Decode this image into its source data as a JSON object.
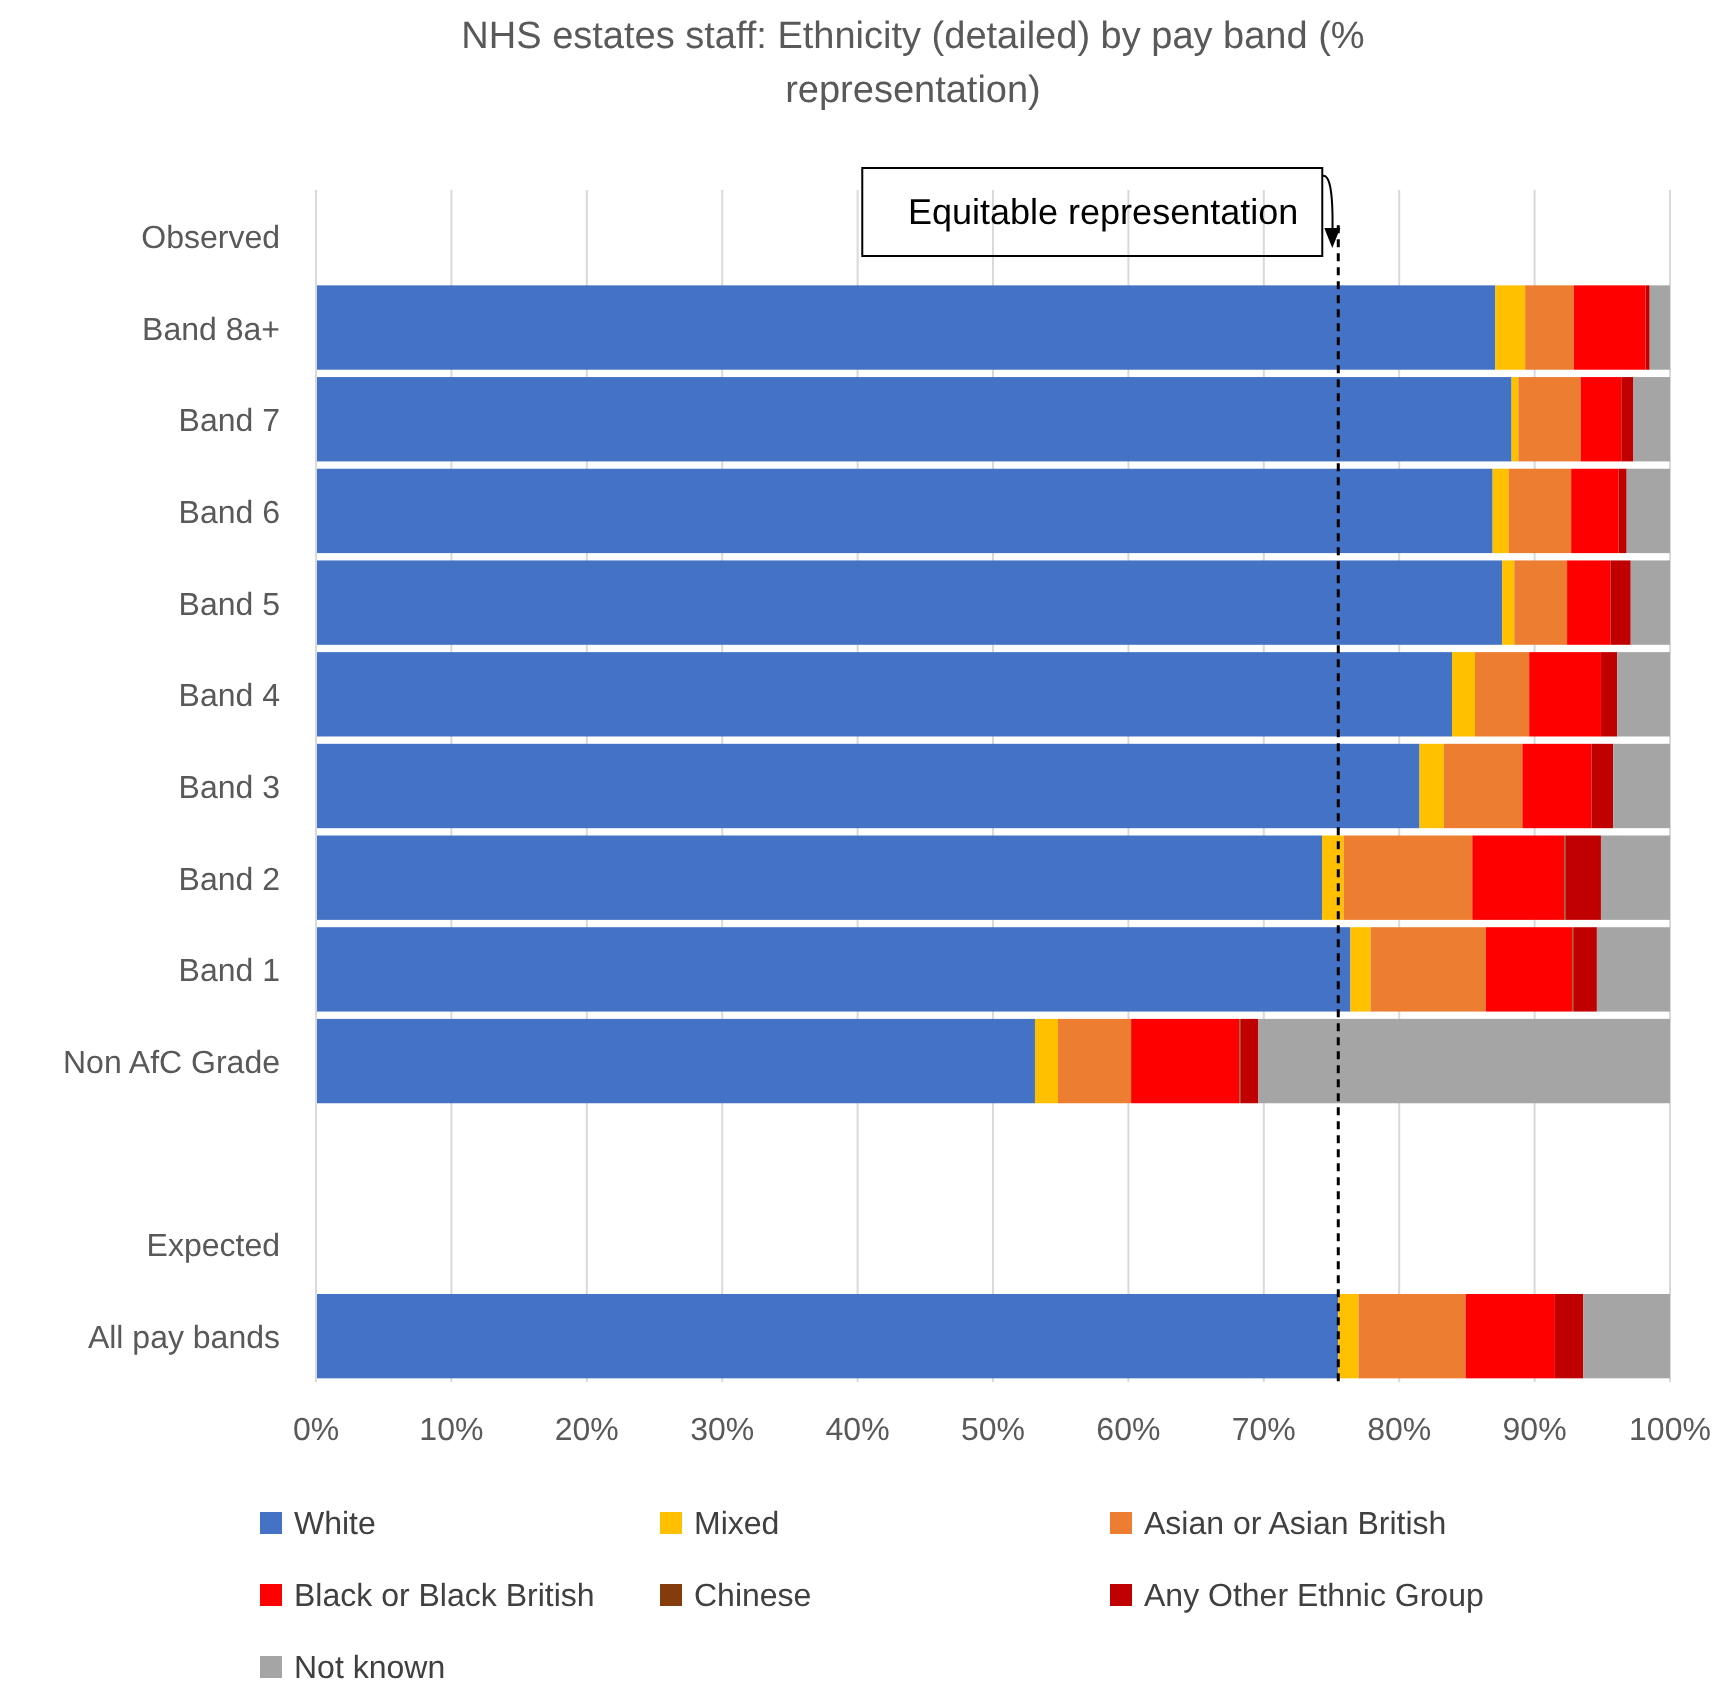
{
  "chart_data": {
    "type": "bar",
    "orientation": "horizontal",
    "stacked": true,
    "title": "NHS estates staff: Ethnicity (detailed) by pay band (% representation)",
    "categories": [
      "Observed",
      "Band 8a+",
      "Band 7",
      "Band 6",
      "Band 5",
      "Band 4",
      "Band 3",
      "Band 2",
      "Band 1",
      "Non AfC Grade",
      null,
      "Expected",
      "All pay bands"
    ],
    "series": [
      {
        "name": "White",
        "color": "#4472c4",
        "values": [
          null,
          87.1,
          88.3,
          86.9,
          87.6,
          83.9,
          81.5,
          74.3,
          76.4,
          53.1,
          null,
          null,
          75.5
        ]
      },
      {
        "name": "Mixed",
        "color": "#ffc000",
        "values": [
          null,
          2.2,
          0.5,
          1.2,
          0.9,
          1.7,
          1.8,
          1.6,
          1.5,
          1.7,
          null,
          null,
          1.5
        ]
      },
      {
        "name": "Asian or Asian British",
        "color": "#ed7d31",
        "values": [
          null,
          3.6,
          4.6,
          4.6,
          3.9,
          4.0,
          5.8,
          9.5,
          8.5,
          5.4,
          null,
          null,
          7.9
        ]
      },
      {
        "name": "Black or Black British",
        "color": "#ff0000",
        "values": [
          null,
          5.3,
          3.0,
          3.5,
          3.2,
          5.3,
          5.1,
          6.8,
          6.4,
          8.0,
          null,
          null,
          6.6
        ]
      },
      {
        "name": "Chinese",
        "color": "#843c0c",
        "values": [
          null,
          0,
          0,
          0,
          0,
          0,
          0,
          0.1,
          0.1,
          0.1,
          null,
          null,
          0
        ]
      },
      {
        "name": "Any Other Ethnic Group",
        "color": "#c00000",
        "values": [
          null,
          0.3,
          0.9,
          0.6,
          1.5,
          1.2,
          1.6,
          2.6,
          1.7,
          1.3,
          null,
          null,
          2.1
        ]
      },
      {
        "name": "Not known",
        "color": "#a5a5a5",
        "values": [
          null,
          1.5,
          2.7,
          3.2,
          2.9,
          3.9,
          4.2,
          5.1,
          5.4,
          30.4,
          null,
          null,
          6.4
        ]
      }
    ],
    "xlim": [
      0,
      100
    ],
    "xticks": [
      {
        "value": 0,
        "label": "0%"
      },
      {
        "value": 10,
        "label": "10%"
      },
      {
        "value": 20,
        "label": "20%"
      },
      {
        "value": 30,
        "label": "30%"
      },
      {
        "value": 40,
        "label": "40%"
      },
      {
        "value": 50,
        "label": "50%"
      },
      {
        "value": 60,
        "label": "60%"
      },
      {
        "value": 70,
        "label": "70%"
      },
      {
        "value": 80,
        "label": "80%"
      },
      {
        "value": 90,
        "label": "90%"
      },
      {
        "value": 100,
        "label": "100%"
      }
    ],
    "grid": "x",
    "legend": "bottom",
    "ref_lines": [
      {
        "axis": "x",
        "value": 75.5,
        "label": "Equitable representation",
        "color": "#000000",
        "line_style": "dashed"
      }
    ]
  }
}
